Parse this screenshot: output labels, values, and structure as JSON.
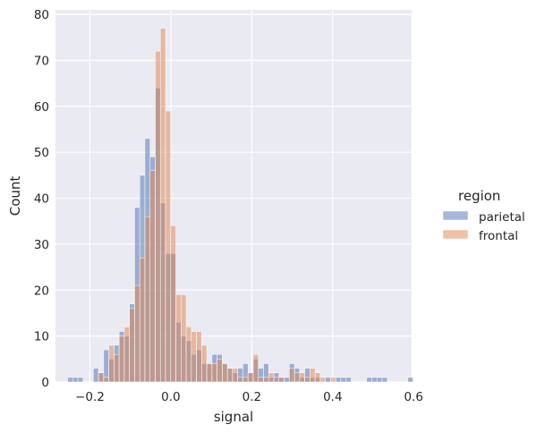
{
  "chart_data": {
    "type": "bar",
    "subtype": "histogram",
    "xlabel": "signal",
    "ylabel": "Count",
    "xlim": [
      -0.285,
      0.595
    ],
    "ylim": [
      0,
      81
    ],
    "x_ticks": [
      -0.2,
      0.0,
      0.2,
      0.4,
      0.6
    ],
    "x_tick_labels": [
      "−0.2",
      "0.0",
      "0.2",
      "0.4",
      "0.6"
    ],
    "y_ticks": [
      0,
      10,
      20,
      30,
      40,
      50,
      60,
      70,
      80
    ],
    "y_tick_labels": [
      "0",
      "10",
      "20",
      "30",
      "40",
      "50",
      "60",
      "70",
      "80"
    ],
    "grid": true,
    "legend": {
      "title": "region",
      "placement": "right"
    },
    "bin_start": -0.2551,
    "bin_width": 0.01274,
    "series": [
      {
        "name": "parietal",
        "color": "#4c72b0",
        "counts": [
          1,
          1,
          1,
          0,
          0,
          3,
          2,
          7,
          5,
          8,
          11,
          10,
          17,
          38,
          45,
          53,
          49,
          64,
          39,
          28,
          28,
          13,
          10,
          9,
          6,
          7,
          4,
          4,
          6,
          6,
          4,
          3,
          2,
          3,
          4,
          2,
          5,
          3,
          4,
          1,
          2,
          1,
          1,
          4,
          3,
          1,
          3,
          1,
          1,
          0,
          1,
          0,
          1,
          1,
          1,
          0,
          0,
          0,
          1,
          1,
          1,
          1,
          0,
          0,
          0,
          0,
          1
        ]
      },
      {
        "name": "frontal",
        "color": "#dd8452",
        "counts": [
          0,
          0,
          0,
          0,
          0,
          0,
          2,
          1,
          8,
          6,
          10,
          12,
          16,
          21,
          27,
          36,
          46,
          72,
          77,
          59,
          34,
          19,
          19,
          12,
          11,
          11,
          8,
          4,
          4,
          5,
          4,
          3,
          3,
          1,
          1,
          2,
          6,
          1,
          1,
          2,
          1,
          1,
          0,
          3,
          2,
          2,
          1,
          3,
          2,
          1,
          0,
          1,
          0,
          0,
          0,
          0,
          0,
          0,
          0,
          0,
          0,
          0,
          0,
          0,
          0,
          0,
          0
        ]
      }
    ]
  }
}
